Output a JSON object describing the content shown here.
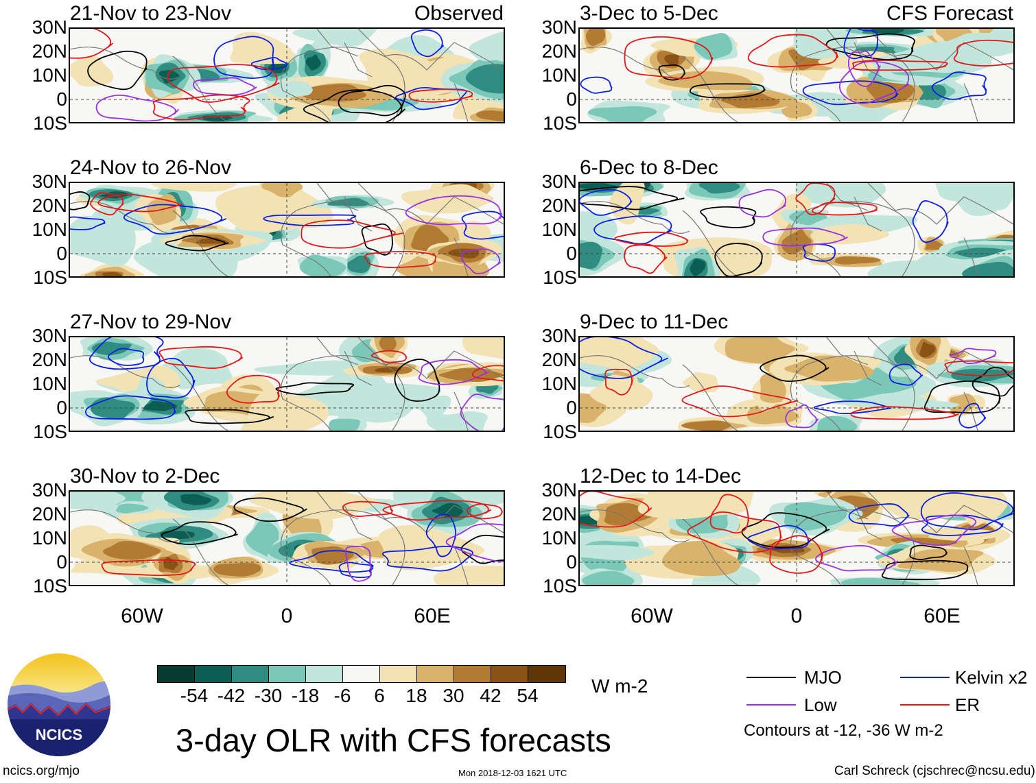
{
  "panels": [
    {
      "title": "21-Nov to 23-Nov",
      "tag": "Observed",
      "seed": 1
    },
    {
      "title": "3-Dec to 5-Dec",
      "tag": "CFS Forecast",
      "seed": 5
    },
    {
      "title": "24-Nov to 26-Nov",
      "tag": "",
      "seed": 2
    },
    {
      "title": "6-Dec to 8-Dec",
      "tag": "",
      "seed": 6
    },
    {
      "title": "27-Nov to 29-Nov",
      "tag": "",
      "seed": 3
    },
    {
      "title": "9-Dec to 11-Dec",
      "tag": "",
      "seed": 7
    },
    {
      "title": "30-Nov to 2-Dec",
      "tag": "",
      "seed": 4
    },
    {
      "title": "12-Dec to 14-Dec",
      "tag": "",
      "seed": 8
    }
  ],
  "y_axis": [
    "30N",
    "20N",
    "10N",
    "0",
    "10S"
  ],
  "x_axis": [
    "60W",
    "0",
    "60E"
  ],
  "colorbar": {
    "labels": [
      "-54",
      "-42",
      "-30",
      "-18",
      "-6",
      "6",
      "18",
      "30",
      "42",
      "54"
    ],
    "colors": [
      "#073b30",
      "#0b5e52",
      "#2f8c80",
      "#7cc8b8",
      "#c2e6dc",
      "#f6f6f4",
      "#f2e2b4",
      "#d9b36c",
      "#b27a32",
      "#8a5214",
      "#5e3608"
    ],
    "unit": "W m-2"
  },
  "legend": {
    "items": [
      {
        "label": "MJO",
        "color": "#000000"
      },
      {
        "label": "Kelvin x2",
        "color": "#0a1ee6"
      },
      {
        "label": "Low",
        "color": "#9b30e0"
      },
      {
        "label": "ER",
        "color": "#e01818"
      }
    ],
    "note": "Contours at -12, -36 W m-2"
  },
  "title": "3-day OLR with CFS forecasts",
  "logo_text": "NCICS",
  "footer": {
    "left": "ncics.org/mjo",
    "center": "Mon 2018-12-03 1621 UTC",
    "right": "Carl Schreck (cjschrec@ncsu.edu)"
  }
}
